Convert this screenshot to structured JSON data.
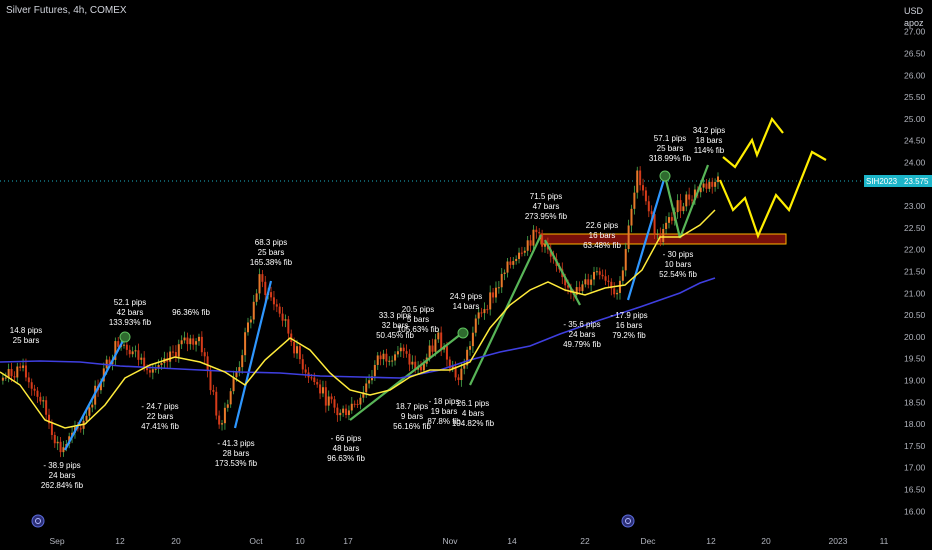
{
  "header": {
    "title": "Silver Futures, 4h, COMEX"
  },
  "axis": {
    "currency": "USD",
    "unit": "apoz"
  },
  "price_tag": {
    "symbol": "SIH2023",
    "value": "23.575"
  },
  "colors": {
    "background": "#000000",
    "price_tag": "#1cb5c9",
    "ma_fast": "#ffeb3b",
    "ma_slow": "#3f3fe0",
    "candles": "#d63b1a",
    "pattern_line": "#2e97ff",
    "projection": "#ffee00",
    "zone_fill": "#a0140e",
    "zone_border": "#ffb300"
  },
  "chart_data": {
    "type": "line",
    "title": "Silver Futures, 4h, COMEX",
    "xlabel": "",
    "ylabel": "",
    "ylim": [
      15.6,
      27.4
    ],
    "y_ticks": [
      "16.00",
      "16.50",
      "17.00",
      "17.50",
      "18.00",
      "18.50",
      "19.00",
      "19.50",
      "20.00",
      "20.50",
      "21.00",
      "21.50",
      "22.00",
      "22.50",
      "23.00",
      "24.00",
      "24.50",
      "25.00",
      "25.50",
      "26.00",
      "26.50",
      "27.00"
    ],
    "x_ticks": [
      "Sep",
      "12",
      "20",
      "Oct",
      "10",
      "17",
      "Nov",
      "14",
      "22",
      "Dec",
      "12",
      "20",
      "2023",
      "11"
    ],
    "series": [
      {
        "name": "",
        "values": [
          19.0,
          19.3,
          18.6,
          17.4,
          17.9,
          19.0,
          20.0,
          19.5,
          19.2,
          19.8,
          20.0,
          18.0,
          19.4,
          21.3,
          20.6,
          19.5,
          18.8,
          18.2,
          18.6,
          19.5,
          19.7,
          19.2,
          20.0,
          19.0,
          20.5,
          21.2,
          22.0,
          22.4,
          21.4,
          21.0,
          21.6,
          21.0,
          23.8,
          22.2,
          23.0,
          23.4,
          23.6
        ]
      }
    ],
    "annotations": [
      {
        "lines": [
          "14.8 pips",
          "25 bars"
        ]
      },
      {
        "lines": [
          "- 38.9 pips",
          "24 bars",
          "262.84% fib"
        ]
      },
      {
        "lines": [
          "52.1 pips",
          "42 bars",
          "133.93% fib"
        ]
      },
      {
        "lines": [
          "- 24.7 pips",
          "22 bars",
          "47.41% fib"
        ]
      },
      {
        "lines": [
          "96.36% fib"
        ]
      },
      {
        "lines": [
          "- 41.3 pips",
          "28 bars",
          "173.53% fib"
        ]
      },
      {
        "lines": [
          "68.3 pips",
          "25 bars",
          "165.38% fib"
        ]
      },
      {
        "lines": [
          "- 66 pips",
          "48 bars",
          "96.63% fib"
        ]
      },
      {
        "lines": [
          "33.3 pips",
          "32 bars",
          "50.45% fib"
        ]
      },
      {
        "lines": [
          "20.5 pips",
          "5 bars",
          "105.63% fib"
        ]
      },
      {
        "lines": [
          "18.7 pips",
          "9 bars",
          "56.16% fib"
        ]
      },
      {
        "lines": [
          "- 18 pips",
          "19 bars",
          "87.8% fib"
        ]
      },
      {
        "lines": [
          "24.9 pips",
          "14 bars"
        ]
      },
      {
        "lines": [
          "26.1 pips",
          "4 bars",
          "104.82% fib"
        ]
      },
      {
        "lines": [
          "71.5 pips",
          "47 bars",
          "273.95% fib"
        ]
      },
      {
        "lines": [
          "22.6 pips",
          "16 bars",
          "63.48% fib"
        ]
      },
      {
        "lines": [
          "- 35.6 pips",
          "24 bars",
          "49.79% fib"
        ]
      },
      {
        "lines": [
          "- 17.9 pips",
          "16 bars",
          "79.2% fib"
        ]
      },
      {
        "lines": [
          "57.1 pips",
          "25 bars",
          "318.99% fib"
        ]
      },
      {
        "lines": [
          "34.2 pips",
          "18 bars",
          "114% fib"
        ]
      },
      {
        "lines": [
          "- 30 pips",
          "10 bars",
          "52.54% fib"
        ]
      }
    ]
  }
}
